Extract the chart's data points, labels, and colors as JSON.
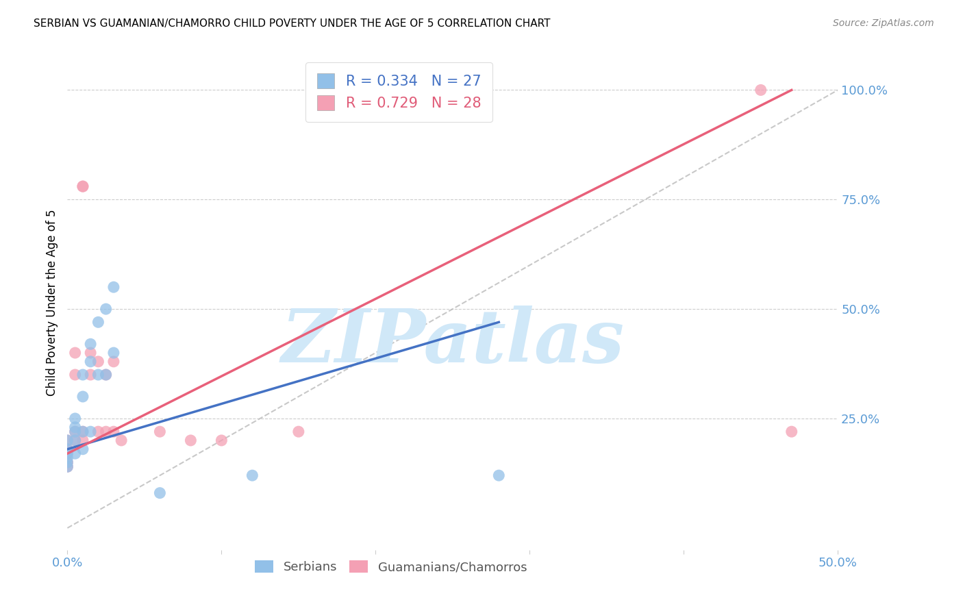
{
  "title": "SERBIAN VS GUAMANIAN/CHAMORRO CHILD POVERTY UNDER THE AGE OF 5 CORRELATION CHART",
  "source": "Source: ZipAtlas.com",
  "ylabel": "Child Poverty Under the Age of 5",
  "xlim": [
    0.0,
    0.5
  ],
  "ylim": [
    -0.05,
    1.08
  ],
  "serbian_color": "#92C0E8",
  "guam_color": "#F4A0B4",
  "serbian_R": 0.334,
  "serbian_N": 27,
  "guam_R": 0.729,
  "guam_N": 28,
  "legend_serbian_color": "#4472C4",
  "legend_guam_color": "#E05C78",
  "watermark": "ZIPatlas",
  "watermark_color": "#D0E8F8",
  "serbian_line_color": "#4472C4",
  "guam_line_color": "#E8607A",
  "ref_line_color": "#BBBBBB",
  "serbian_x": [
    0.0,
    0.0,
    0.0,
    0.0,
    0.0,
    0.0,
    0.005,
    0.005,
    0.005,
    0.005,
    0.005,
    0.01,
    0.01,
    0.01,
    0.01,
    0.015,
    0.015,
    0.015,
    0.02,
    0.02,
    0.025,
    0.025,
    0.03,
    0.03,
    0.06,
    0.12,
    0.28
  ],
  "serbian_y": [
    0.2,
    0.18,
    0.17,
    0.16,
    0.15,
    0.14,
    0.25,
    0.23,
    0.22,
    0.2,
    0.17,
    0.35,
    0.3,
    0.22,
    0.18,
    0.42,
    0.38,
    0.22,
    0.47,
    0.35,
    0.5,
    0.35,
    0.55,
    0.4,
    0.08,
    0.12,
    0.12
  ],
  "guam_x": [
    0.0,
    0.0,
    0.0,
    0.0,
    0.0,
    0.005,
    0.005,
    0.005,
    0.005,
    0.01,
    0.01,
    0.01,
    0.01,
    0.015,
    0.015,
    0.02,
    0.02,
    0.025,
    0.025,
    0.03,
    0.03,
    0.035,
    0.06,
    0.08,
    0.1,
    0.15,
    0.45,
    0.47
  ],
  "guam_y": [
    0.2,
    0.18,
    0.17,
    0.15,
    0.14,
    0.4,
    0.35,
    0.22,
    0.2,
    0.78,
    0.78,
    0.22,
    0.2,
    0.4,
    0.35,
    0.38,
    0.22,
    0.35,
    0.22,
    0.38,
    0.22,
    0.2,
    0.22,
    0.2,
    0.2,
    0.22,
    1.0,
    0.22
  ],
  "serbian_line_x0": 0.0,
  "serbian_line_y0": 0.18,
  "serbian_line_x1": 0.28,
  "serbian_line_y1": 0.47,
  "guam_line_x0": 0.0,
  "guam_line_y0": 0.17,
  "guam_line_x1": 0.47,
  "guam_line_y1": 1.0
}
